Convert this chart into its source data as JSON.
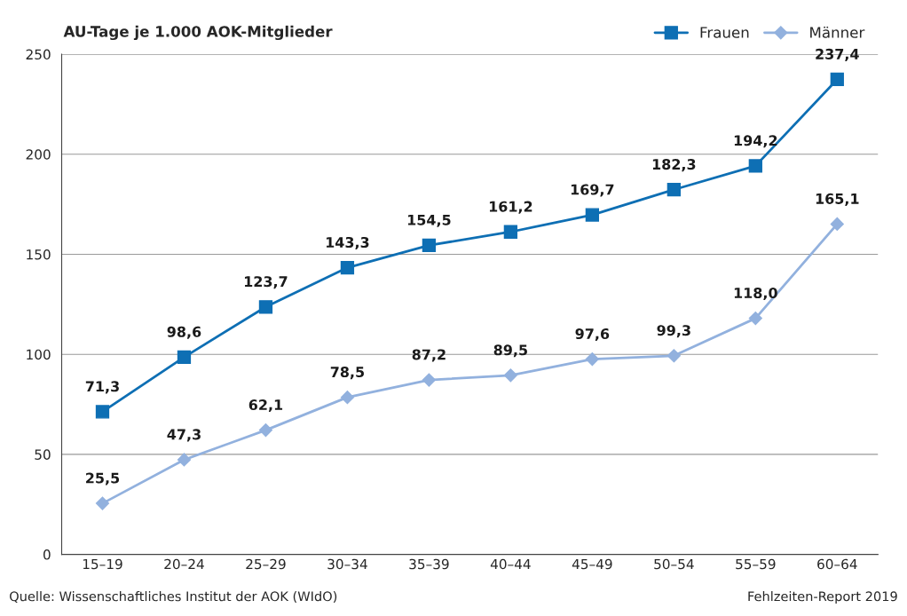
{
  "chart_data": {
    "type": "line",
    "title": "AU-Tage je 1.000 AOK-Mitglieder",
    "categories": [
      "15–19",
      "20–24",
      "25–29",
      "30–34",
      "35–39",
      "40–44",
      "45–49",
      "50–54",
      "55–59",
      "60–64"
    ],
    "series": [
      {
        "name": "Frauen",
        "color": "#0e6fb4",
        "marker": "square",
        "values": [
          71.3,
          98.6,
          123.7,
          143.3,
          154.5,
          161.2,
          169.7,
          182.3,
          194.2,
          237.4
        ],
        "value_labels": [
          "71,3",
          "98,6",
          "123,7",
          "143,3",
          "154,5",
          "161,2",
          "169,7",
          "182,3",
          "194,2",
          "237,4"
        ]
      },
      {
        "name": "Männer",
        "color": "#92b1de",
        "marker": "diamond",
        "values": [
          25.5,
          47.3,
          62.1,
          78.5,
          87.2,
          89.5,
          97.6,
          99.3,
          118.0,
          165.1
        ],
        "value_labels": [
          "25,5",
          "47,3",
          "62,1",
          "78,5",
          "87,2",
          "89,5",
          "97,6",
          "99,3",
          "118,0",
          "165,1"
        ]
      }
    ],
    "ylim": [
      0,
      250
    ],
    "yticks": [
      0,
      50,
      100,
      150,
      200,
      250
    ],
    "grid": "y",
    "legend": "top right",
    "line_style": "solid",
    "annotations": [
      "Quelle: Wissenschaftliches Institut der AOK (WIdO)",
      "Fehlzeiten-Report 2019"
    ]
  }
}
